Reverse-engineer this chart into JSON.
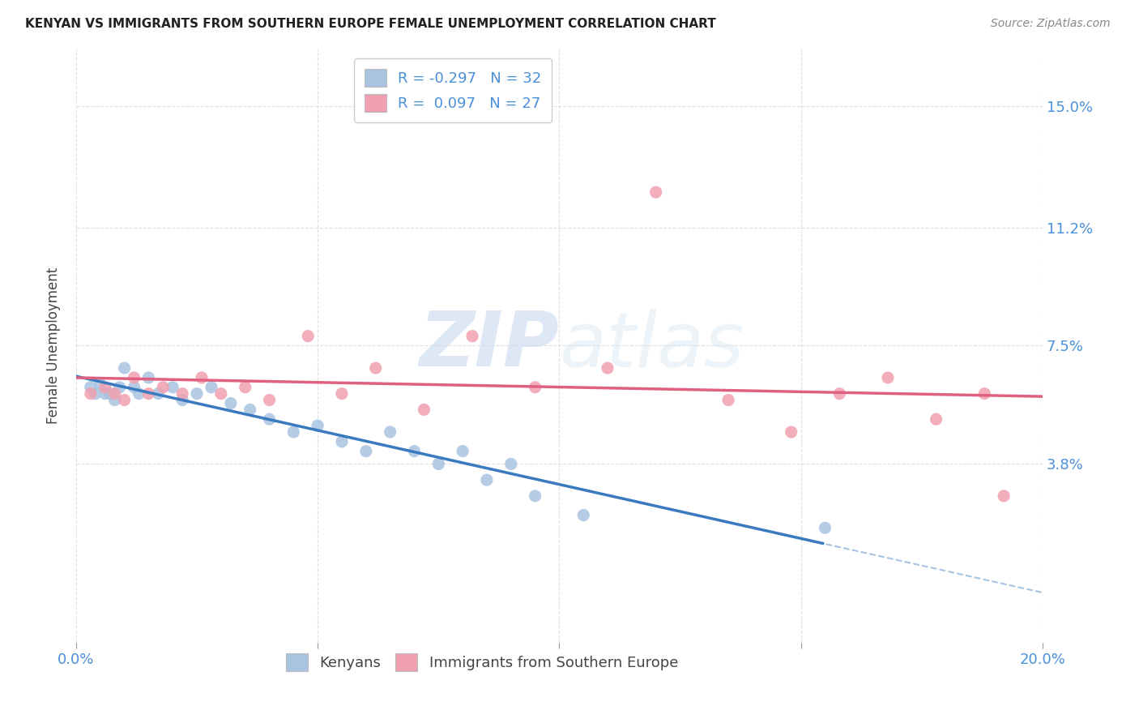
{
  "title": "KENYAN VS IMMIGRANTS FROM SOUTHERN EUROPE FEMALE UNEMPLOYMENT CORRELATION CHART",
  "source": "Source: ZipAtlas.com",
  "ylabel": "Female Unemployment",
  "ytick_labels": [
    "15.0%",
    "11.2%",
    "7.5%",
    "3.8%"
  ],
  "ytick_values": [
    0.15,
    0.112,
    0.075,
    0.038
  ],
  "xmin": 0.0,
  "xmax": 0.2,
  "ymin": -0.018,
  "ymax": 0.168,
  "watermark_zip": "ZIP",
  "watermark_atlas": "atlas",
  "legend_entry1_r": "R = -0.297",
  "legend_entry1_n": "N = 32",
  "legend_entry2_r": "R =  0.097",
  "legend_entry2_n": "N = 27",
  "legend_label1": "Kenyans",
  "legend_label2": "Immigrants from Southern Europe",
  "kenyan_color": "#a8c4e0",
  "southern_europe_color": "#f0a0b0",
  "kenyan_line_color": "#3a7bbf",
  "southern_europe_line_color": "#e06080",
  "background_color": "#ffffff",
  "grid_color": "#cccccc",
  "kenyan_x": [
    0.002,
    0.003,
    0.004,
    0.005,
    0.006,
    0.007,
    0.008,
    0.009,
    0.01,
    0.012,
    0.014,
    0.015,
    0.017,
    0.02,
    0.025,
    0.03,
    0.035,
    0.038,
    0.042,
    0.05,
    0.055,
    0.06,
    0.065,
    0.07,
    0.075,
    0.08,
    0.085,
    0.09,
    0.095,
    0.1,
    0.11,
    0.15
  ],
  "kenyan_y": [
    0.062,
    0.06,
    0.06,
    0.06,
    0.055,
    0.058,
    0.058,
    0.055,
    0.065,
    0.06,
    0.058,
    0.062,
    0.058,
    0.062,
    0.06,
    0.055,
    0.06,
    0.05,
    0.048,
    0.042,
    0.048,
    0.04,
    0.046,
    0.042,
    0.036,
    0.042,
    0.032,
    0.038,
    0.028,
    0.032,
    0.022,
    0.018
  ],
  "seur_x": [
    0.003,
    0.005,
    0.007,
    0.009,
    0.011,
    0.013,
    0.016,
    0.02,
    0.024,
    0.028,
    0.033,
    0.038,
    0.045,
    0.055,
    0.062,
    0.07,
    0.08,
    0.095,
    0.11,
    0.12,
    0.135,
    0.145,
    0.155,
    0.165,
    0.175,
    0.185,
    0.195
  ],
  "seur_y": [
    0.06,
    0.062,
    0.06,
    0.058,
    0.065,
    0.058,
    0.062,
    0.06,
    0.065,
    0.06,
    0.062,
    0.058,
    0.075,
    0.06,
    0.068,
    0.055,
    0.075,
    0.06,
    0.068,
    0.123,
    0.06,
    0.048,
    0.06,
    0.065,
    0.055,
    0.062,
    0.028
  ]
}
